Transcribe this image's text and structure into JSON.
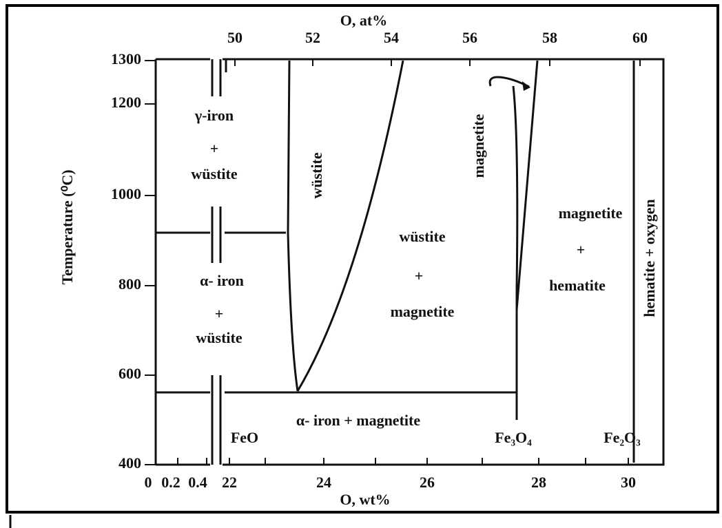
{
  "top_axis": {
    "label": "O, at%",
    "ticks": [
      "50",
      "52",
      "54",
      "56",
      "58",
      "60"
    ]
  },
  "bottom_axis": {
    "label": "O, wt%",
    "ticks": [
      "0",
      "0.2",
      "0.4",
      "22",
      "24",
      "26",
      "28",
      "30"
    ]
  },
  "left_axis": {
    "label": "Temperature (⁰C)",
    "ticks": [
      "1300",
      "1200",
      "1000",
      "800",
      "600",
      "400"
    ]
  },
  "regions": [
    "γ-iron",
    "+",
    "wüstite",
    "α- iron",
    "+",
    "wüstite",
    "wüstite",
    "wüstite",
    "+",
    "magnetite",
    "magnetite",
    "magnetite",
    "+",
    "hematite",
    "hematite + oxygen",
    "α- iron + magnetite"
  ],
  "compounds": [
    "FeO",
    "Fe₃O₄",
    "Fe₂O₃"
  ]
}
